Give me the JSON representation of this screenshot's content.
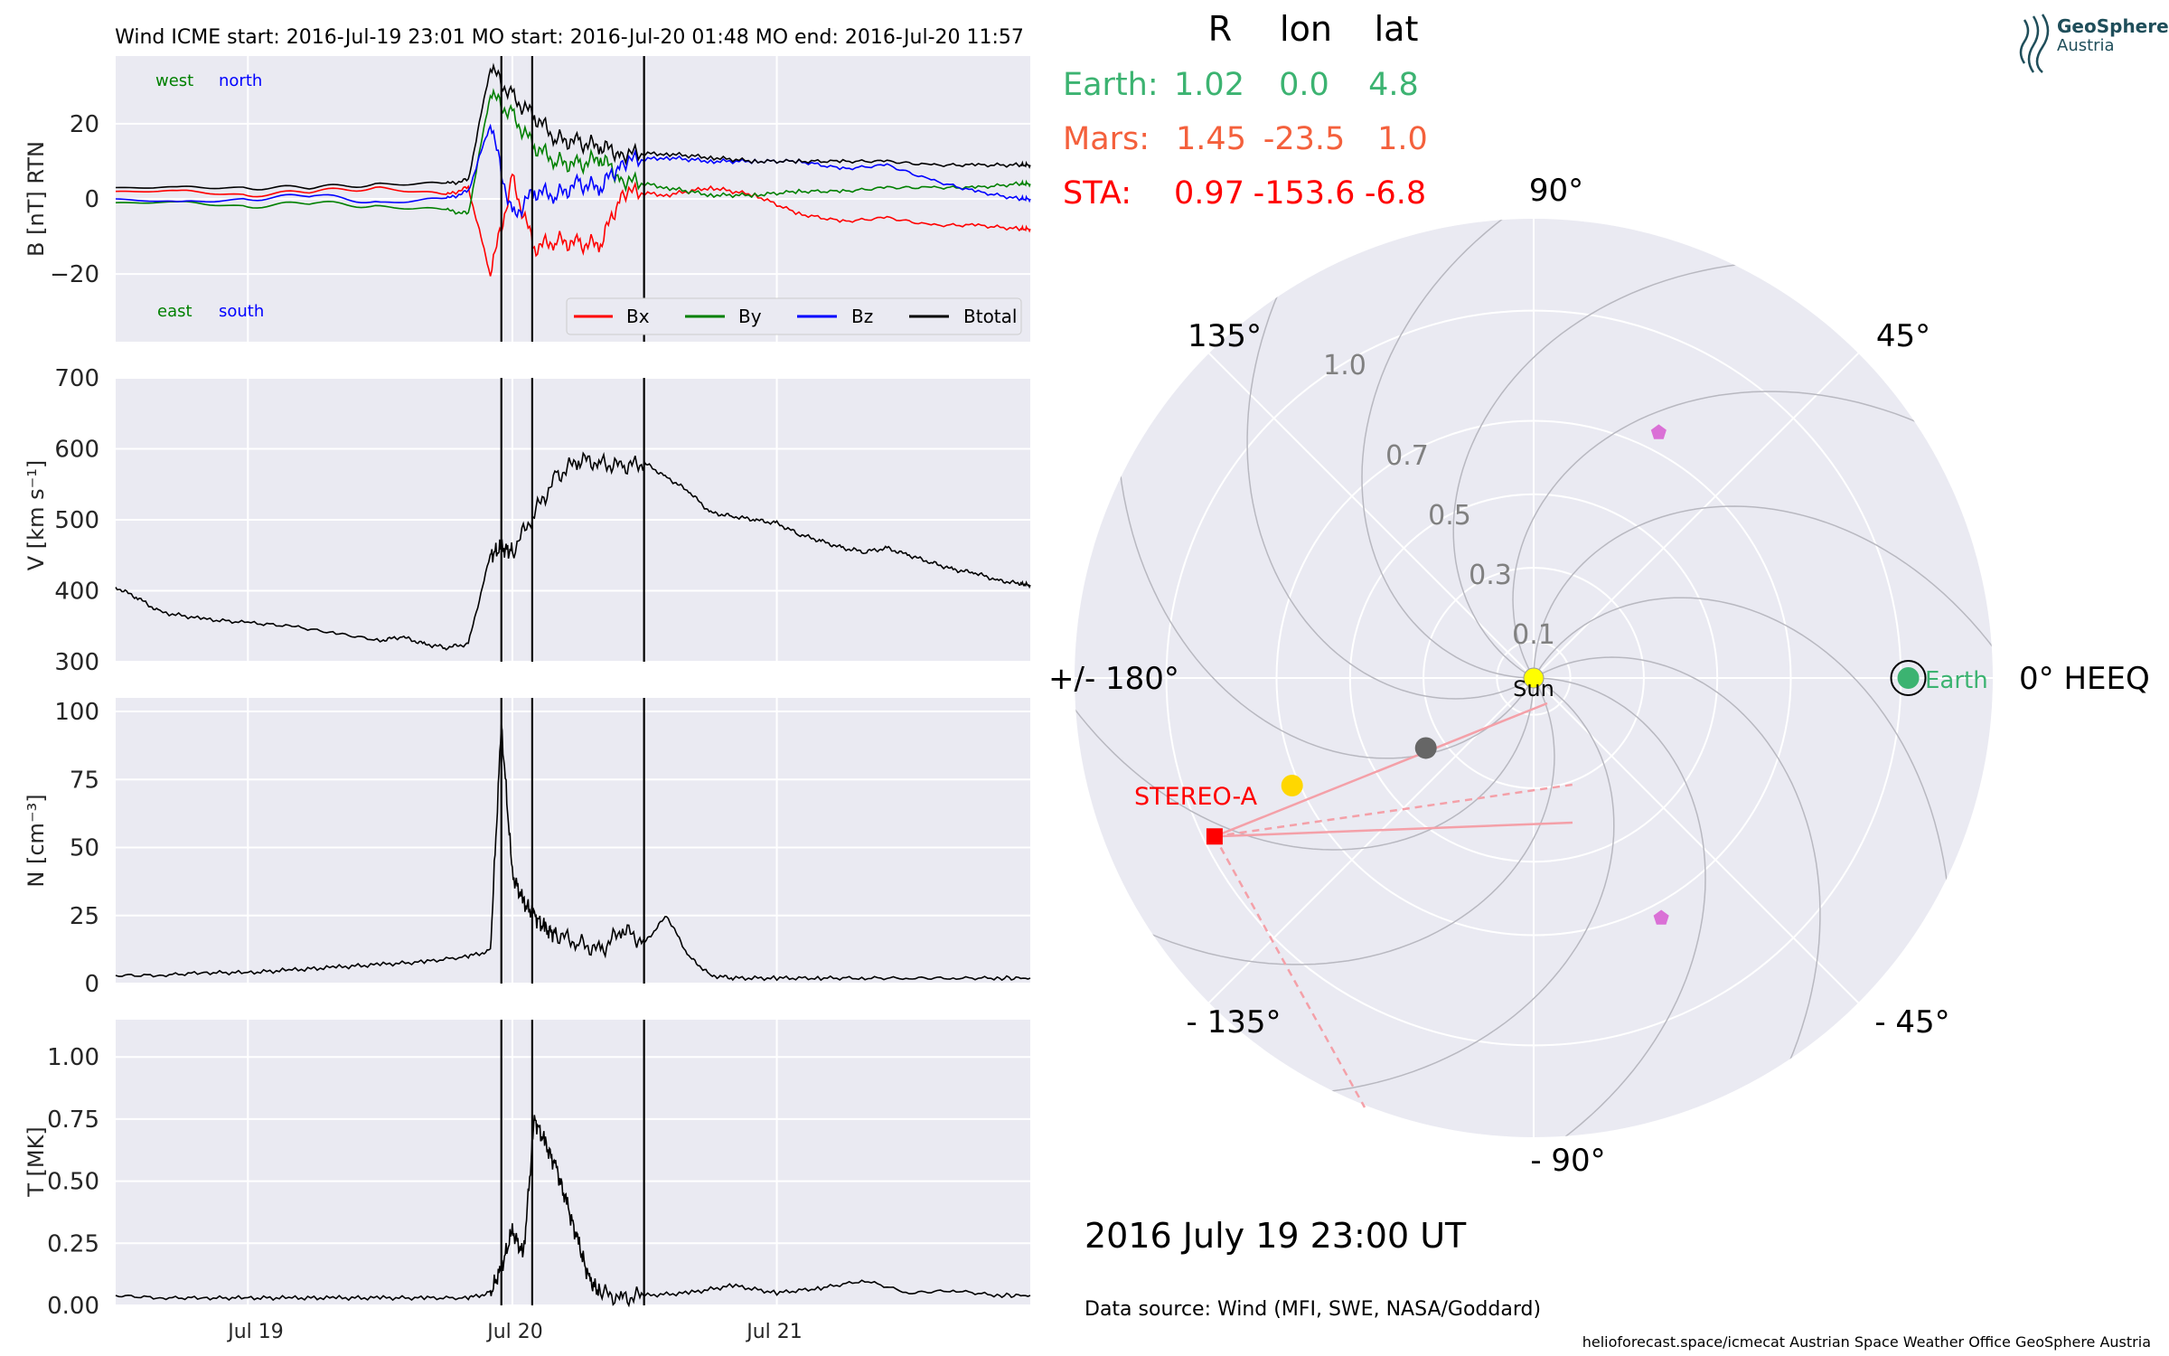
{
  "header": {
    "title": "Wind    ICME start: 2016-Jul-19 23:01   MO start: 2016-Jul-20 01:48   MO end: 2016-Jul-20 11:57"
  },
  "logo": {
    "name": "GeoSphere",
    "sub": "Austria",
    "icon": "geosphere-logo-icon"
  },
  "colors": {
    "panel_bg": "#eaeaf2",
    "grid": "#ffffff",
    "bx": "#ff0000",
    "by": "#008000",
    "bz": "#0000ff",
    "btotal": "#000000",
    "earth": "#3cb371",
    "mars": "#f4603c",
    "sta": "#ff0000",
    "sun": "#ffff00",
    "mercury_like": "#666666",
    "venus_like": "#ffd700",
    "psp_like": "#da70d6"
  },
  "chart_data": [
    {
      "type": "line",
      "panel": "B",
      "ylabel": "B [nT] RTN",
      "ylim": [
        -38,
        38
      ],
      "yticks": [
        "20",
        "0",
        "−20"
      ],
      "ytick_values": [
        20,
        0,
        -20
      ],
      "xlim": [
        "2016-07-18 12:00",
        "2016-07-21 23:00"
      ],
      "xticks": [
        "Jul 19",
        "Jul 20",
        "Jul 21"
      ],
      "annotations": {
        "west": "west",
        "north": "north",
        "east": "east",
        "south": "south"
      },
      "legend": [
        "Bx",
        "By",
        "Bz",
        "Btotal"
      ],
      "legend_position": "lower-right",
      "series": [
        {
          "name": "Bx",
          "color": "#ff0000",
          "x": [
            0,
            6,
            12,
            18,
            24,
            30,
            32,
            34,
            36,
            38,
            40,
            42,
            44,
            46,
            50,
            54,
            58,
            62,
            66,
            70,
            74,
            78,
            82,
            83
          ],
          "values": [
            2,
            2,
            1,
            2,
            3,
            1,
            3,
            -20,
            5,
            -13,
            -11,
            -12,
            -12,
            2,
            1,
            3,
            1,
            -4,
            -6,
            -5,
            -7,
            -7,
            -8,
            -8
          ]
        },
        {
          "name": "By",
          "color": "#008000",
          "x": [
            0,
            6,
            12,
            18,
            24,
            30,
            32,
            34,
            36,
            38,
            40,
            42,
            44,
            46,
            50,
            54,
            58,
            62,
            66,
            70,
            74,
            78,
            82,
            83
          ],
          "values": [
            -1,
            -1,
            -2,
            -1,
            -2,
            -3,
            -4,
            28,
            22,
            14,
            10,
            9,
            11,
            5,
            3,
            1,
            1,
            2,
            2,
            3,
            3,
            3,
            4,
            4
          ]
        },
        {
          "name": "Bz",
          "color": "#0000ff",
          "x": [
            0,
            6,
            12,
            18,
            24,
            30,
            32,
            34,
            36,
            38,
            40,
            42,
            44,
            46,
            50,
            54,
            58,
            62,
            66,
            70,
            74,
            78,
            82,
            83
          ],
          "values": [
            0,
            -1,
            0,
            1,
            -1,
            0,
            2,
            20,
            -5,
            2,
            1,
            4,
            3,
            10,
            11,
            10,
            10,
            10,
            8,
            9,
            5,
            2,
            0,
            0
          ]
        },
        {
          "name": "Btotal",
          "color": "#000000",
          "x": [
            0,
            6,
            12,
            18,
            24,
            30,
            32,
            34,
            36,
            38,
            40,
            42,
            44,
            46,
            50,
            54,
            58,
            62,
            66,
            70,
            74,
            78,
            82,
            83
          ],
          "values": [
            3,
            3,
            3,
            3,
            4,
            4,
            5,
            35,
            27,
            22,
            16,
            15,
            14,
            12,
            12,
            11,
            10,
            10,
            10,
            10,
            9,
            9,
            9,
            9
          ]
        }
      ]
    },
    {
      "type": "line",
      "panel": "V",
      "ylabel": "V [km s⁻¹]",
      "ylim": [
        300,
        700
      ],
      "yticks": [
        "700",
        "600",
        "500",
        "400",
        "300"
      ],
      "ytick_values": [
        700,
        600,
        500,
        400,
        300
      ],
      "xticks": [
        "Jul 19",
        "Jul 20",
        "Jul 21"
      ],
      "series": [
        {
          "name": "V",
          "color": "#000000",
          "x": [
            0,
            2,
            4,
            8,
            12,
            16,
            20,
            24,
            26,
            28,
            30,
            32,
            34,
            35,
            36,
            38,
            40,
            42,
            44,
            46,
            48,
            50,
            52,
            54,
            56,
            58,
            60,
            62,
            64,
            66,
            68,
            70,
            72,
            74,
            76,
            78,
            80,
            82,
            83
          ],
          "values": [
            405,
            390,
            370,
            360,
            355,
            350,
            340,
            330,
            335,
            325,
            320,
            325,
            450,
            460,
            455,
            510,
            560,
            585,
            580,
            575,
            580,
            560,
            540,
            510,
            505,
            500,
            495,
            480,
            470,
            460,
            455,
            460,
            450,
            440,
            430,
            425,
            415,
            410,
            408
          ]
        }
      ]
    },
    {
      "type": "line",
      "panel": "N",
      "ylabel": "N [cm⁻³]",
      "ylim": [
        0,
        105
      ],
      "yticks": [
        "100",
        "75",
        "50",
        "25",
        "0"
      ],
      "ytick_values": [
        100,
        75,
        50,
        25,
        0
      ],
      "xticks": [
        "Jul 19",
        "Jul 20",
        "Jul 21"
      ],
      "series": [
        {
          "name": "N",
          "color": "#000000",
          "x": [
            0,
            4,
            8,
            12,
            16,
            20,
            24,
            28,
            32,
            34,
            35,
            36,
            37,
            38,
            39,
            40,
            42,
            44,
            46,
            48,
            50,
            52,
            54,
            56,
            60,
            64,
            68,
            72,
            76,
            80,
            83
          ],
          "values": [
            3,
            3,
            4,
            4,
            5,
            6,
            7,
            8,
            10,
            12,
            95,
            40,
            30,
            25,
            20,
            18,
            15,
            12,
            20,
            15,
            25,
            10,
            3,
            2,
            2,
            2,
            2,
            2,
            2,
            2,
            2
          ]
        }
      ]
    },
    {
      "type": "line",
      "panel": "T",
      "ylabel": "T [MK]",
      "ylim": [
        0,
        1.15
      ],
      "yticks": [
        "1.00",
        "0.75",
        "0.50",
        "0.25",
        "0.00"
      ],
      "ytick_values": [
        1.0,
        0.75,
        0.5,
        0.25,
        0.0
      ],
      "xticks": [
        "Jul 19",
        "Jul 20",
        "Jul 21"
      ],
      "series": [
        {
          "name": "T",
          "color": "#000000",
          "x": [
            0,
            4,
            8,
            12,
            16,
            20,
            24,
            28,
            32,
            34,
            35,
            36,
            37,
            38,
            39,
            40,
            41,
            42,
            43,
            44,
            46,
            48,
            52,
            56,
            60,
            64,
            68,
            72,
            76,
            80,
            83
          ],
          "values": [
            0.04,
            0.03,
            0.03,
            0.03,
            0.03,
            0.03,
            0.03,
            0.03,
            0.03,
            0.05,
            0.15,
            0.3,
            0.2,
            0.75,
            0.65,
            0.55,
            0.4,
            0.25,
            0.1,
            0.05,
            0.03,
            0.04,
            0.05,
            0.08,
            0.05,
            0.07,
            0.1,
            0.05,
            0.06,
            0.04,
            0.04
          ]
        }
      ]
    },
    {
      "type": "scatter",
      "panel": "polar",
      "angle_labels": {
        "a90": "90°",
        "a45": "45°",
        "a0": "0° HEEQ",
        "am45": "- 45°",
        "am90": "- 90°",
        "am135": "- 135°",
        "a180": "+/- 180°",
        "a135": "135°"
      },
      "r_labels": [
        "0.1",
        "0.3",
        "0.5",
        "0.7",
        "1.0"
      ],
      "r_values": [
        0.1,
        0.3,
        0.5,
        0.7,
        1.0
      ],
      "rmax": 1.25,
      "objects": [
        {
          "name": "Sun",
          "r": 0.0,
          "lon": 0.0,
          "color": "#ffff00"
        },
        {
          "name": "Earth",
          "r": 1.02,
          "lon": 0.0,
          "color": "#3cb371"
        },
        {
          "name": "STEREO-A",
          "r": 0.97,
          "lon": -153.6,
          "color": "#ff0000"
        },
        {
          "name": "",
          "r": 0.72,
          "lon": -156,
          "color": "#ffd700"
        },
        {
          "name": "",
          "r": 0.35,
          "lon": -147,
          "color": "#666666"
        },
        {
          "name": "",
          "r": 0.75,
          "lon": 63,
          "color": "#da70d6"
        },
        {
          "name": "",
          "r": 0.74,
          "lon": -62,
          "color": "#da70d6"
        }
      ]
    }
  ],
  "positions_table": {
    "headers": [
      "R",
      "lon",
      "lat"
    ],
    "rows": [
      {
        "label": "Earth:",
        "R": "1.02",
        "lon": "0.0",
        "lat": "4.8",
        "color": "#3cb371"
      },
      {
        "label": "Mars:",
        "R": "1.45",
        "lon": "-23.5",
        "lat": "1.0",
        "color": "#f4603c"
      },
      {
        "label": "STA:",
        "R": "0.97",
        "lon": "-153.6",
        "lat": "-6.8",
        "color": "#ff0000"
      }
    ]
  },
  "labels": {
    "sun": "Sun",
    "earth": "Earth",
    "stereo_a": "STEREO-A",
    "date": "2016 July 19  23:00 UT",
    "data_source": "Data source: Wind (MFI, SWE, NASA/Goddard)",
    "credits": "helioforecast.space/icmecat   Austrian Space Weather Office   GeoSphere Austria"
  }
}
